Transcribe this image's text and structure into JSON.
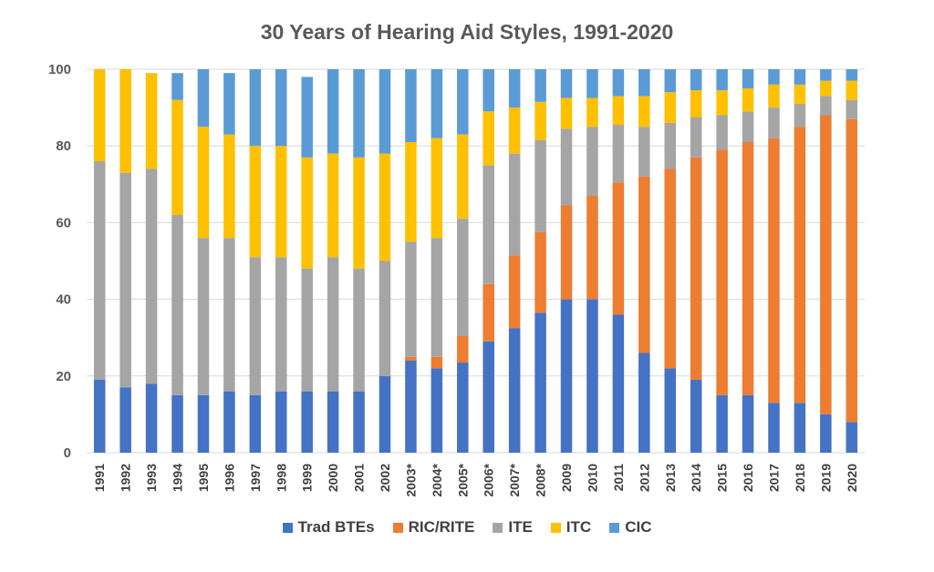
{
  "chart_data": {
    "type": "bar",
    "stacked": true,
    "title": "30 Years of Hearing Aid Styles, 1991-2020",
    "xlabel": "",
    "ylabel": "",
    "ylim": [
      0,
      100
    ],
    "yticks": [
      0,
      20,
      40,
      60,
      80,
      100
    ],
    "grid": true,
    "legend_position": "bottom",
    "categories": [
      "1991",
      "1992",
      "1993",
      "1994",
      "1995",
      "1996",
      "1997",
      "1998",
      "1999",
      "2000",
      "2001",
      "2002",
      "2003*",
      "2004*",
      "2005*",
      "2006*",
      "2007*",
      "2008*",
      "2009",
      "2010",
      "2011",
      "2012",
      "2013",
      "2014",
      "2015",
      "2016",
      "2017",
      "2018",
      "2019",
      "2020"
    ],
    "series": [
      {
        "name": "Trad BTEs",
        "color": "#4472C4",
        "values": [
          19,
          17,
          18,
          15,
          15,
          16,
          15,
          16,
          16,
          16,
          16,
          20,
          24,
          22,
          23.5,
          29,
          32.5,
          36.5,
          40,
          40,
          36,
          26,
          22,
          19,
          15,
          15,
          13,
          13,
          10,
          8
        ]
      },
      {
        "name": "RIC/RITE",
        "color": "#ED7D31",
        "values": [
          0,
          0,
          0,
          0,
          0,
          0,
          0,
          0,
          0,
          0,
          0,
          0,
          1,
          3,
          7,
          15,
          19,
          21,
          24.5,
          27,
          34.5,
          46,
          52,
          58,
          64,
          66,
          69,
          72,
          78,
          79
        ]
      },
      {
        "name": "ITE",
        "color": "#A5A5A5",
        "values": [
          57,
          56,
          56,
          47,
          41,
          40,
          36,
          35,
          32,
          35,
          32,
          30,
          30,
          31,
          30.5,
          31,
          26.5,
          24,
          20,
          18,
          15,
          13,
          12,
          10.5,
          9,
          8,
          8,
          6,
          5,
          5
        ]
      },
      {
        "name": "ITC",
        "color": "#FFC000",
        "values": [
          24,
          27,
          25,
          30,
          29,
          27,
          29,
          29,
          29,
          27,
          29,
          28,
          26,
          26,
          22,
          14,
          12,
          10,
          8,
          7.5,
          7.5,
          8,
          8,
          7,
          6.5,
          6,
          6,
          5,
          4,
          5
        ]
      },
      {
        "name": "CIC",
        "color": "#5B9BD5",
        "values": [
          0,
          0,
          0,
          7,
          15,
          16,
          20,
          20,
          21,
          22,
          23,
          22,
          19,
          18,
          17,
          11,
          10,
          8.5,
          7.5,
          7.5,
          7,
          7,
          6,
          5.5,
          5.5,
          5,
          4,
          4,
          3,
          3
        ]
      }
    ]
  }
}
